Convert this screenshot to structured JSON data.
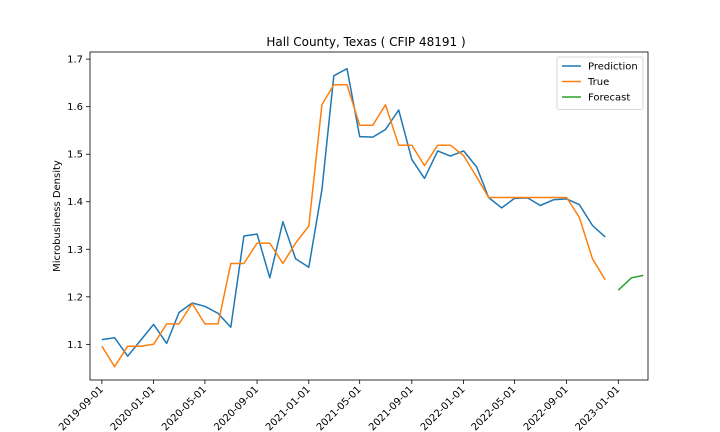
{
  "chart_data": {
    "type": "line",
    "title": "Hall County, Texas ( CFIP 48191 )",
    "xlabel": "",
    "ylabel": "Microbusiness Density",
    "ylim": [
      1.025,
      1.715
    ],
    "xlim": [
      "2019-08-04",
      "2023-03-12"
    ],
    "y_ticks": [
      1.1,
      1.2,
      1.3,
      1.4,
      1.5,
      1.6,
      1.7
    ],
    "x_ticks": [
      "2019-09-01",
      "2020-01-01",
      "2020-05-01",
      "2020-09-01",
      "2021-01-01",
      "2021-05-01",
      "2021-09-01",
      "2022-01-01",
      "2022-05-01",
      "2022-09-01",
      "2023-01-01"
    ],
    "grid": false,
    "legend_position": "top-right",
    "series": [
      {
        "name": "Prediction",
        "color": "#1f77b4",
        "x": [
          "2019-09-01",
          "2019-10-01",
          "2019-11-01",
          "2019-12-01",
          "2020-01-01",
          "2020-02-01",
          "2020-03-01",
          "2020-04-01",
          "2020-05-01",
          "2020-06-01",
          "2020-07-01",
          "2020-08-01",
          "2020-09-01",
          "2020-10-01",
          "2020-11-01",
          "2020-12-01",
          "2021-01-01",
          "2021-02-01",
          "2021-03-01",
          "2021-04-01",
          "2021-05-01",
          "2021-06-01",
          "2021-07-01",
          "2021-08-01",
          "2021-09-01",
          "2021-10-01",
          "2021-11-01",
          "2021-12-01",
          "2022-01-01",
          "2022-02-01",
          "2022-03-01",
          "2022-04-01",
          "2022-05-01",
          "2022-06-01",
          "2022-07-01",
          "2022-08-01",
          "2022-09-01",
          "2022-10-01",
          "2022-11-01",
          "2022-12-01"
        ],
        "values": [
          1.11,
          1.114,
          1.075,
          1.108,
          1.142,
          1.102,
          1.167,
          1.187,
          1.18,
          1.165,
          1.136,
          1.328,
          1.332,
          1.24,
          1.358,
          1.28,
          1.262,
          1.425,
          1.665,
          1.68,
          1.537,
          1.536,
          1.552,
          1.593,
          1.489,
          1.449,
          1.507,
          1.496,
          1.507,
          1.473,
          1.409,
          1.387,
          1.407,
          1.408,
          1.392,
          1.404,
          1.406,
          1.394,
          1.35,
          1.326
        ]
      },
      {
        "name": "True",
        "color": "#ff7f0e",
        "x": [
          "2019-09-01",
          "2019-10-01",
          "2019-11-01",
          "2019-12-01",
          "2020-01-01",
          "2020-02-01",
          "2020-03-01",
          "2020-04-01",
          "2020-05-01",
          "2020-06-01",
          "2020-07-01",
          "2020-08-01",
          "2020-09-01",
          "2020-10-01",
          "2020-11-01",
          "2020-12-01",
          "2021-01-01",
          "2021-02-01",
          "2021-03-01",
          "2021-04-01",
          "2021-05-01",
          "2021-06-01",
          "2021-07-01",
          "2021-08-01",
          "2021-09-01",
          "2021-10-01",
          "2021-11-01",
          "2021-12-01",
          "2022-01-01",
          "2022-02-01",
          "2022-03-01",
          "2022-04-01",
          "2022-05-01",
          "2022-06-01",
          "2022-07-01",
          "2022-08-01",
          "2022-09-01",
          "2022-10-01",
          "2022-11-01",
          "2022-12-01"
        ],
        "values": [
          1.096,
          1.053,
          1.096,
          1.096,
          1.1,
          1.143,
          1.143,
          1.186,
          1.143,
          1.143,
          1.27,
          1.27,
          1.313,
          1.313,
          1.27,
          1.313,
          1.349,
          1.604,
          1.646,
          1.646,
          1.561,
          1.561,
          1.604,
          1.519,
          1.519,
          1.476,
          1.519,
          1.519,
          1.497,
          1.452,
          1.409,
          1.409,
          1.409,
          1.409,
          1.409,
          1.409,
          1.409,
          1.367,
          1.28,
          1.236
        ]
      },
      {
        "name": "Forecast",
        "color": "#2ca02c",
        "x": [
          "2023-01-01",
          "2023-02-01",
          "2023-03-01"
        ],
        "values": [
          1.214,
          1.24,
          1.245
        ]
      }
    ]
  }
}
